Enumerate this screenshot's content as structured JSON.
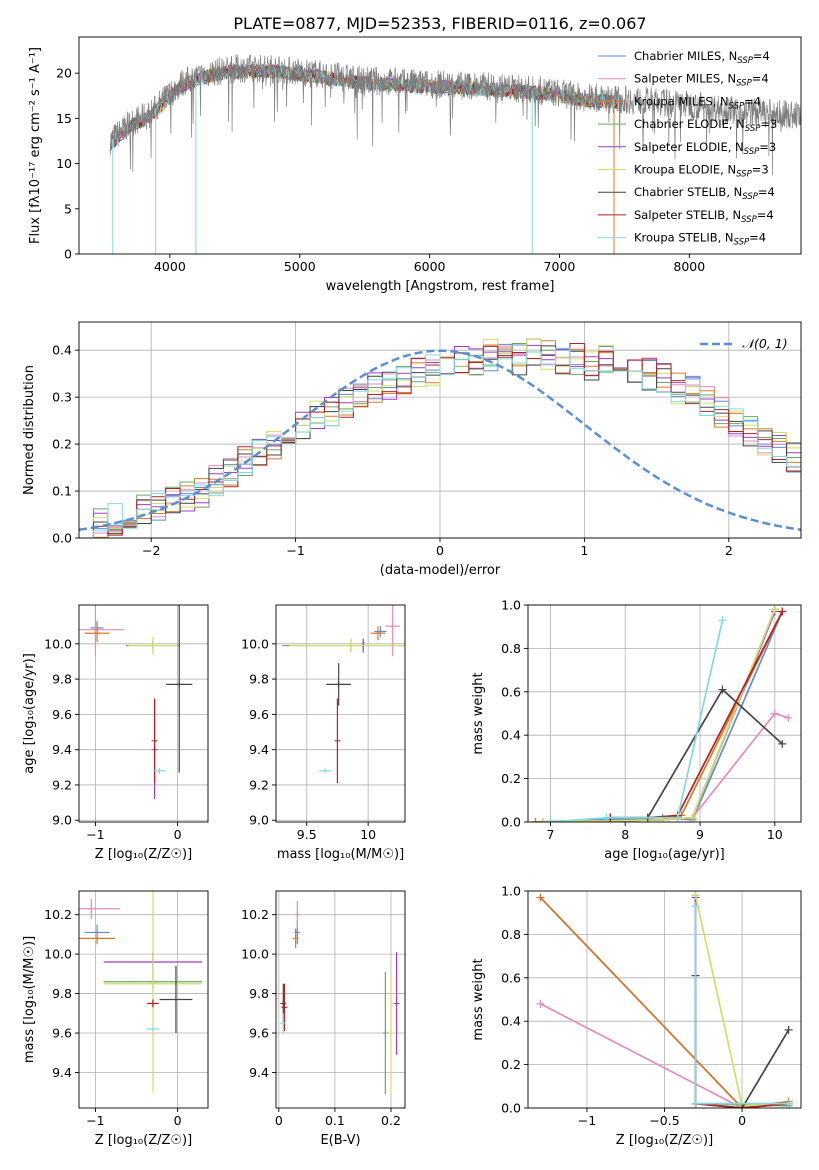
{
  "colors": {
    "chabrier_miles": "#5b8fd4",
    "salpeter_miles": "#e48bbd",
    "kroupa_miles": "#d97a2b",
    "chabrier_elodie": "#6aa86a",
    "salpeter_elodie": "#9b3fc8",
    "kroupa_elodie": "#d4dd63",
    "chabrier_stelib": "#444444",
    "salpeter_stelib": "#b22222",
    "kroupa_stelib": "#80dbe0",
    "spectrum": "#7f7f7f",
    "gaussian": "#5b8fd4",
    "grid": "#b0b0b0"
  },
  "chart_data": [
    {
      "id": "spectrum",
      "type": "line",
      "title": "PLATE=0877, MJD=52353, FIBERID=0116, z=0.067",
      "xlabel": "wavelength [Angstrom, rest frame]",
      "ylabel": "Flux [fλ10⁻¹⁷ erg cm⁻² s⁻¹ A⁻¹]",
      "xlim": [
        3300,
        8860
      ],
      "ylim": [
        0,
        24
      ],
      "xticks": [
        4000,
        5000,
        6000,
        7000,
        8000
      ],
      "yticks": [
        0,
        5,
        10,
        15,
        20
      ],
      "grid": false,
      "legend_position": "top-right",
      "legend": [
        {
          "base": "Chabrier MILES, N",
          "sub": "SSP",
          "tail": "=4",
          "color_key": "chabrier_miles"
        },
        {
          "base": "Salpeter MILES, N",
          "sub": "SSP",
          "tail": "=4",
          "color_key": "salpeter_miles"
        },
        {
          "base": "Kroupa MILES, N",
          "sub": "SSP",
          "tail": "=4",
          "color_key": "kroupa_miles"
        },
        {
          "base": "Chabrier ELODIE, N",
          "sub": "SSP",
          "tail": "=3",
          "color_key": "chabrier_elodie"
        },
        {
          "base": "Salpeter ELODIE, N",
          "sub": "SSP",
          "tail": "=3",
          "color_key": "salpeter_elodie"
        },
        {
          "base": "Kroupa ELODIE, N",
          "sub": "SSP",
          "tail": "=3",
          "color_key": "kroupa_elodie"
        },
        {
          "base": "Chabrier STELIB, N",
          "sub": "SSP",
          "tail": "=4",
          "color_key": "chabrier_stelib"
        },
        {
          "base": "Salpeter STELIB, N",
          "sub": "SSP",
          "tail": "=4",
          "color_key": "salpeter_stelib"
        },
        {
          "base": "Kroupa STELIB, N",
          "sub": "SSP",
          "tail": "=4",
          "color_key": "kroupa_stelib"
        }
      ],
      "data_range": [
        3540,
        8860
      ],
      "continuum": [
        [
          3540,
          12.5
        ],
        [
          3700,
          14.5
        ],
        [
          3850,
          15.5
        ],
        [
          3950,
          17
        ],
        [
          4100,
          19
        ],
        [
          4300,
          20
        ],
        [
          4500,
          20.5
        ],
        [
          4800,
          20.5
        ],
        [
          5100,
          20
        ],
        [
          5500,
          19.2
        ],
        [
          6000,
          18.8
        ],
        [
          6500,
          18.5
        ],
        [
          6900,
          18
        ],
        [
          7200,
          17.3
        ],
        [
          7600,
          17
        ],
        [
          8000,
          16.5
        ],
        [
          8400,
          15.8
        ],
        [
          8860,
          15.3
        ]
      ],
      "model_range": [
        3540,
        7450
      ],
      "model_dips": [
        [
          3560,
          0
        ],
        [
          3890,
          0
        ],
        [
          4200,
          0
        ],
        [
          6790,
          0
        ],
        [
          7420,
          0
        ]
      ]
    },
    {
      "id": "residuals",
      "type": "histogram",
      "xlabel": "(data-model)/error",
      "ylabel": "Normed distribution",
      "xlim": [
        -2.5,
        2.5
      ],
      "ylim": [
        0,
        0.46
      ],
      "xticks": [
        -2,
        -1,
        0,
        1,
        2
      ],
      "yticks": [
        0.0,
        0.1,
        0.2,
        0.3,
        0.4
      ],
      "grid": true,
      "legend_position": "top-right",
      "legend": [
        {
          "label": "𝒩(0, 1)",
          "color_key": "gaussian"
        }
      ],
      "gaussian_mu": 0,
      "gaussian_sigma": 1,
      "bin_width": 0.1,
      "bin_start": -2.5,
      "hist_base": [
        0.03,
        0.035,
        0.04,
        0.05,
        0.06,
        0.065,
        0.075,
        0.09,
        0.1,
        0.12,
        0.14,
        0.16,
        0.18,
        0.2,
        0.22,
        0.24,
        0.26,
        0.27,
        0.29,
        0.31,
        0.32,
        0.33,
        0.34,
        0.35,
        0.36,
        0.37,
        0.38,
        0.38,
        0.39,
        0.39,
        0.38,
        0.39,
        0.39,
        0.38,
        0.38,
        0.37,
        0.38,
        0.37,
        0.36,
        0.35,
        0.34,
        0.32,
        0.31,
        0.29,
        0.27,
        0.25,
        0.23,
        0.21,
        0.19,
        0.17,
        0.15,
        0.13,
        0.12,
        0.1,
        0.085,
        0.075,
        0.065,
        0.055,
        0.045,
        0.04
      ],
      "series": [
        {
          "color_key": "chabrier_miles"
        },
        {
          "color_key": "salpeter_miles"
        },
        {
          "color_key": "kroupa_miles"
        },
        {
          "color_key": "chabrier_elodie"
        },
        {
          "color_key": "salpeter_elodie"
        },
        {
          "color_key": "kroupa_elodie"
        },
        {
          "color_key": "chabrier_stelib"
        },
        {
          "color_key": "salpeter_stelib"
        },
        {
          "color_key": "kroupa_stelib"
        }
      ]
    },
    {
      "id": "age_vs_z",
      "type": "errorbar",
      "xlabel": "Z [log₁₀(Z/Z☉)]",
      "ylabel": "age  [log₁₀(age/yr)]",
      "xlim": [
        -1.2,
        0.37
      ],
      "ylim": [
        8.99,
        10.22
      ],
      "xticks": [
        -1,
        0
      ],
      "yticks": [
        9.0,
        9.2,
        9.4,
        9.6,
        9.8,
        10.0
      ],
      "grid": true,
      "points": [
        {
          "x": -0.98,
          "y": 10.09,
          "xerr": 0.08,
          "yerr": 0.04,
          "color_key": "chabrier_miles"
        },
        {
          "x": -1.0,
          "y": 10.08,
          "xerr": 0.35,
          "yerr": 0.15,
          "color_key": "salpeter_miles"
        },
        {
          "x": -0.98,
          "y": 10.06,
          "xerr": 0.15,
          "yerr": 0.05,
          "color_key": "kroupa_miles"
        },
        {
          "x": -0.3,
          "y": 9.99,
          "xerr": 0.33,
          "yerr": 0.03,
          "color_key": "chabrier_elodie"
        },
        {
          "x": -0.28,
          "y": 9.4,
          "xerr": 0.0,
          "yerr": 0.28,
          "color_key": "salpeter_elodie"
        },
        {
          "x": -0.3,
          "y": 9.99,
          "xerr": 0.3,
          "yerr": 0.05,
          "color_key": "kroupa_elodie"
        },
        {
          "x": 0.02,
          "y": 9.77,
          "xerr": 0.16,
          "yerr": 0.5,
          "color_key": "chabrier_stelib"
        },
        {
          "x": -0.28,
          "y": 9.45,
          "xerr": 0.0,
          "yerr": 0.24,
          "color_key": "salpeter_stelib"
        },
        {
          "x": -0.22,
          "y": 9.28,
          "xerr": 0.08,
          "yerr": 0.0,
          "color_key": "kroupa_stelib"
        }
      ]
    },
    {
      "id": "age_vs_mass",
      "type": "errorbar",
      "xlabel": "mass [log₁₀(M/M☉)]",
      "ylabel": "",
      "xlim": [
        9.25,
        10.3
      ],
      "ylim": [
        8.99,
        10.22
      ],
      "xticks": [
        9.5,
        10.0
      ],
      "yticks": [
        9.0,
        9.2,
        9.4,
        9.6,
        9.8,
        10.0
      ],
      "grid": true,
      "points": [
        {
          "x": 10.1,
          "y": 10.07,
          "xerr": 0.05,
          "yerr": 0.03,
          "color_key": "chabrier_miles"
        },
        {
          "x": 10.2,
          "y": 10.1,
          "xerr": 0.06,
          "yerr": 0.17,
          "color_key": "salpeter_miles"
        },
        {
          "x": 10.08,
          "y": 10.06,
          "xerr": 0.06,
          "yerr": 0.04,
          "color_key": "kroupa_miles"
        },
        {
          "x": 9.86,
          "y": 9.99,
          "xerr": 0.56,
          "yerr": 0.03,
          "color_key": "chabrier_elodie"
        },
        {
          "x": 9.96,
          "y": 9.99,
          "xerr": 0.0,
          "yerr": 0.04,
          "color_key": "salpeter_elodie"
        },
        {
          "x": 9.86,
          "y": 9.99,
          "xerr": 0.5,
          "yerr": 0.04,
          "color_key": "kroupa_elodie"
        },
        {
          "x": 9.76,
          "y": 9.77,
          "xerr": 0.1,
          "yerr": 0.12,
          "color_key": "chabrier_stelib"
        },
        {
          "x": 9.75,
          "y": 9.45,
          "xerr": 0.0,
          "yerr": 0.24,
          "color_key": "salpeter_stelib"
        },
        {
          "x": 9.65,
          "y": 9.28,
          "xerr": 0.05,
          "yerr": 0.0,
          "color_key": "kroupa_stelib"
        }
      ]
    },
    {
      "id": "weight_vs_age",
      "type": "line",
      "xlabel": "age  [log₁₀(age/yr)]",
      "ylabel": "mass weight",
      "xlim": [
        6.7,
        10.35
      ],
      "ylim": [
        0,
        1.0
      ],
      "xticks": [
        7,
        8,
        9,
        10
      ],
      "yticks": [
        0.0,
        0.2,
        0.4,
        0.6,
        0.8,
        1.0
      ],
      "grid": true,
      "series": [
        {
          "color_key": "chabrier_miles",
          "x": [
            6.8,
            8.5,
            8.9,
            10.1
          ],
          "y": [
            0.0,
            0.02,
            0.01,
            0.97
          ]
        },
        {
          "color_key": "salpeter_miles",
          "x": [
            6.8,
            8.5,
            8.9,
            10.0,
            10.18
          ],
          "y": [
            0.0,
            0.01,
            0.02,
            0.5,
            0.48
          ]
        },
        {
          "color_key": "kroupa_miles",
          "x": [
            6.8,
            8.5,
            8.75,
            10.1
          ],
          "y": [
            0.0,
            0.01,
            0.03,
            0.97
          ]
        },
        {
          "color_key": "chabrier_elodie",
          "x": [
            6.9,
            8.5,
            8.9,
            10.0
          ],
          "y": [
            0.0,
            0.01,
            0.02,
            0.98
          ]
        },
        {
          "color_key": "salpeter_elodie",
          "x": [
            6.9,
            8.5,
            8.9,
            10.0
          ],
          "y": [
            0.0,
            0.01,
            0.02,
            0.97
          ]
        },
        {
          "color_key": "kroupa_elodie",
          "x": [
            6.9,
            8.5,
            8.9,
            10.0
          ],
          "y": [
            0.0,
            0.01,
            0.02,
            0.98
          ]
        },
        {
          "color_key": "chabrier_stelib",
          "x": [
            7.8,
            8.3,
            9.3,
            10.1
          ],
          "y": [
            0.02,
            0.02,
            0.61,
            0.36
          ]
        },
        {
          "color_key": "salpeter_stelib",
          "x": [
            7.8,
            8.3,
            8.7,
            10.1
          ],
          "y": [
            0.02,
            0.02,
            0.03,
            0.97
          ]
        },
        {
          "color_key": "kroupa_stelib",
          "x": [
            7.0,
            7.75,
            8.7,
            9.3
          ],
          "y": [
            0.0,
            0.02,
            0.02,
            0.93
          ]
        }
      ]
    },
    {
      "id": "mass_vs_z",
      "type": "errorbar",
      "xlabel": "Z [log₁₀(Z/Z☉)]",
      "ylabel": "mass [log₁₀(M/M☉)]",
      "xlim": [
        -1.2,
        0.37
      ],
      "ylim": [
        9.22,
        10.32
      ],
      "xticks": [
        -1,
        0
      ],
      "yticks": [
        9.4,
        9.6,
        9.8,
        10.0,
        10.2
      ],
      "grid": true,
      "points": [
        {
          "x": -0.98,
          "y": 10.11,
          "xerr": 0.15,
          "yerr": 0.04,
          "color_key": "chabrier_miles"
        },
        {
          "x": -1.05,
          "y": 10.23,
          "xerr": 0.35,
          "yerr": 0.05,
          "color_key": "salpeter_miles"
        },
        {
          "x": -0.98,
          "y": 10.08,
          "xerr": 0.22,
          "yerr": 0.03,
          "color_key": "kroupa_miles"
        },
        {
          "x": -0.3,
          "y": 9.86,
          "xerr": 0.6,
          "yerr": 0.05,
          "color_key": "chabrier_elodie"
        },
        {
          "x": -0.3,
          "y": 9.96,
          "xerr": 0.6,
          "yerr": 0.05,
          "color_key": "salpeter_elodie"
        },
        {
          "x": -0.3,
          "y": 9.85,
          "xerr": 0.6,
          "yerr": 0.55,
          "color_key": "kroupa_elodie"
        },
        {
          "x": -0.02,
          "y": 9.77,
          "xerr": 0.2,
          "yerr": 0.17,
          "color_key": "chabrier_stelib"
        },
        {
          "x": -0.3,
          "y": 9.75,
          "xerr": 0.07,
          "yerr": 0.02,
          "color_key": "salpeter_stelib"
        },
        {
          "x": -0.3,
          "y": 9.62,
          "xerr": 0.08,
          "yerr": 0.0,
          "color_key": "kroupa_stelib"
        }
      ]
    },
    {
      "id": "mass_vs_ebv",
      "type": "errorbar",
      "xlabel": "E(B-V)",
      "ylabel": "",
      "xlim": [
        -0.005,
        0.225
      ],
      "ylim": [
        9.22,
        10.32
      ],
      "xticks": [
        0.0,
        0.1,
        0.2
      ],
      "yticks": [
        9.4,
        9.6,
        9.8,
        10.0,
        10.2
      ],
      "grid": true,
      "points": [
        {
          "x": 0.033,
          "y": 10.11,
          "xerr": 0.0,
          "yerr": 0.06,
          "color_key": "chabrier_miles"
        },
        {
          "x": 0.033,
          "y": 10.2,
          "xerr": 0.0,
          "yerr": 0.07,
          "color_key": "salpeter_miles"
        },
        {
          "x": 0.03,
          "y": 10.08,
          "xerr": 0.0,
          "yerr": 0.05,
          "color_key": "kroupa_miles"
        },
        {
          "x": 0.19,
          "y": 9.6,
          "xerr": 0.0,
          "yerr": 0.31,
          "color_key": "chabrier_elodie"
        },
        {
          "x": 0.21,
          "y": 9.75,
          "xerr": 0.0,
          "yerr": 0.26,
          "color_key": "salpeter_elodie"
        },
        {
          "x": 0.2,
          "y": 9.6,
          "xerr": 0.0,
          "yerr": 0.3,
          "color_key": "kroupa_elodie"
        },
        {
          "x": 0.008,
          "y": 9.75,
          "xerr": 0.0,
          "yerr": 0.1,
          "color_key": "chabrier_stelib"
        },
        {
          "x": 0.01,
          "y": 9.73,
          "xerr": 0.0,
          "yerr": 0.12,
          "color_key": "salpeter_stelib"
        },
        {
          "x": 0.008,
          "y": 9.65,
          "xerr": 0.0,
          "yerr": 0.05,
          "color_key": "kroupa_stelib"
        }
      ]
    },
    {
      "id": "weight_vs_z",
      "type": "line",
      "xlabel": "Z [log₁₀(Z/Z☉)]",
      "ylabel": "mass weight",
      "xlim": [
        -1.38,
        0.38
      ],
      "ylim": [
        0,
        1.0
      ],
      "xticks": [
        -1.0,
        -0.5,
        0.0
      ],
      "yticks": [
        0.0,
        0.2,
        0.4,
        0.6,
        0.8,
        1.0
      ],
      "grid": true,
      "series": [
        {
          "color_key": "chabrier_miles",
          "x": [
            -1.3,
            0.0,
            0.3
          ],
          "y": [
            0.97,
            0.0,
            0.02
          ]
        },
        {
          "color_key": "salpeter_miles",
          "x": [
            -1.3,
            0.0,
            0.3
          ],
          "y": [
            0.48,
            0.0,
            0.02
          ]
        },
        {
          "color_key": "kroupa_miles",
          "x": [
            -1.3,
            0.0,
            0.3
          ],
          "y": [
            0.97,
            0.0,
            0.03
          ]
        },
        {
          "color_key": "chabrier_elodie",
          "x": [
            -0.3,
            -0.3,
            0.3
          ],
          "y": [
            0.98,
            0.02,
            0.01
          ]
        },
        {
          "color_key": "salpeter_elodie",
          "x": [
            -0.3,
            -0.3,
            0.3
          ],
          "y": [
            0.97,
            0.02,
            0.02
          ]
        },
        {
          "color_key": "kroupa_elodie",
          "x": [
            -0.3,
            0.0,
            0.3
          ],
          "y": [
            0.98,
            0.01,
            0.02
          ]
        },
        {
          "color_key": "chabrier_stelib",
          "x": [
            -0.3,
            -0.3,
            0.0,
            0.3
          ],
          "y": [
            0.61,
            0.02,
            0.0,
            0.36
          ]
        },
        {
          "color_key": "salpeter_stelib",
          "x": [
            -0.3,
            0.0,
            0.3
          ],
          "y": [
            0.02,
            0.0,
            0.02
          ]
        },
        {
          "color_key": "kroupa_stelib",
          "x": [
            -0.3,
            -0.3,
            0.3
          ],
          "y": [
            0.93,
            0.02,
            0.02
          ]
        }
      ]
    }
  ]
}
